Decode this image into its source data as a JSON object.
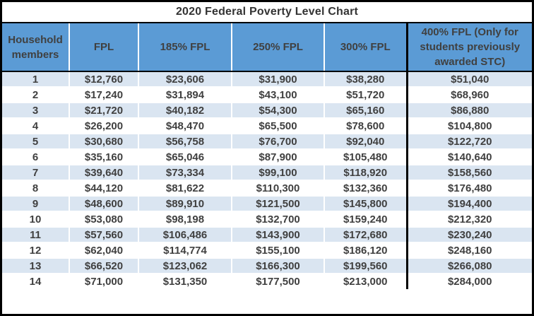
{
  "chart_data": {
    "type": "table",
    "title": "2020 Federal Poverty Level Chart",
    "columns": [
      "Household members",
      "FPL",
      "185% FPL",
      "250% FPL",
      "300% FPL",
      "400% FPL (Only for students previously awarded STC)"
    ],
    "rows": [
      [
        "1",
        "$12,760",
        "$23,606",
        "$31,900",
        "$38,280",
        "$51,040"
      ],
      [
        "2",
        "$17,240",
        "$31,894",
        "$43,100",
        "$51,720",
        "$68,960"
      ],
      [
        "3",
        "$21,720",
        "$40,182",
        "$54,300",
        "$65,160",
        "$86,880"
      ],
      [
        "4",
        "$26,200",
        "$48,470",
        "$65,500",
        "$78,600",
        "$104,800"
      ],
      [
        "5",
        "$30,680",
        "$56,758",
        "$76,700",
        "$92,040",
        "$122,720"
      ],
      [
        "6",
        "$35,160",
        "$65,046",
        "$87,900",
        "$105,480",
        "$140,640"
      ],
      [
        "7",
        "$39,640",
        "$73,334",
        "$99,100",
        "$118,920",
        "$158,560"
      ],
      [
        "8",
        "$44,120",
        "$81,622",
        "$110,300",
        "$132,360",
        "$176,480"
      ],
      [
        "9",
        "$48,600",
        "$89,910",
        "$121,500",
        "$145,800",
        "$194,400"
      ],
      [
        "10",
        "$53,080",
        "$98,198",
        "$132,700",
        "$159,240",
        "$212,320"
      ],
      [
        "11",
        "$57,560",
        "$106,486",
        "$143,900",
        "$172,680",
        "$230,240"
      ],
      [
        "12",
        "$62,040",
        "$114,774",
        "$155,100",
        "$186,120",
        "$248,160"
      ],
      [
        "13",
        "$66,520",
        "$123,062",
        "$166,300",
        "$199,560",
        "$266,080"
      ],
      [
        "14",
        "$71,000",
        "$131,350",
        "$177,500",
        "$213,000",
        "$284,000"
      ]
    ],
    "colors": {
      "header_bg": "#5B9BD5",
      "header_text": "#404040",
      "cell_text": "#404040",
      "row_alt_bg": "#DAE5F1",
      "row_bg": "#FFFFFF",
      "title_bg": "#FFFFFF",
      "title_text": "#333333",
      "border_black": "#000000",
      "separator_white": "#FFFFFF"
    },
    "layout": {
      "header_position": "top",
      "grid": "white separators, black outline on last column",
      "alternating_rows": true
    }
  }
}
